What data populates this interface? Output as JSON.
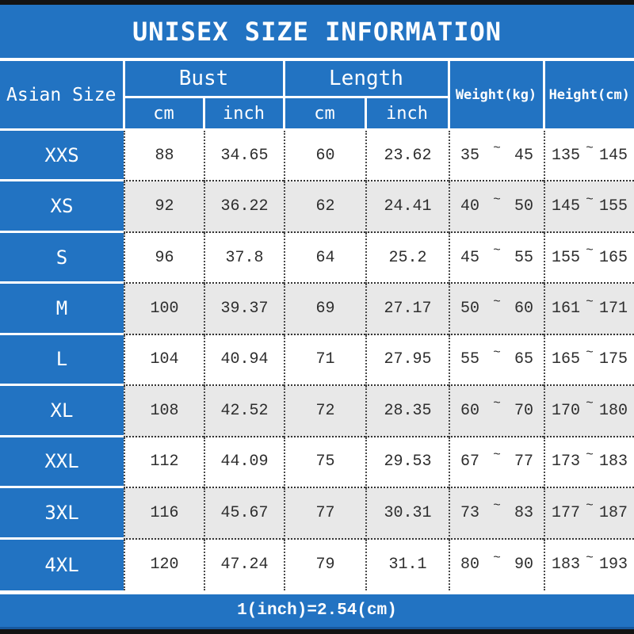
{
  "title": "UNISEX SIZE INFORMATION",
  "footer_note": "1(inch)=2.54(cm)",
  "colors": {
    "blue": "#2273c2",
    "row_alt": "#e8e8e8",
    "row_plain": "#ffffff",
    "header_text": "#ffffff",
    "data_text": "#2e2e2e",
    "frame_black": "#131313",
    "footer_rule_blue": "#17599f"
  },
  "chart_data": {
    "type": "table",
    "title": "UNISEX SIZE INFORMATION",
    "header": {
      "corner": "Asian Size",
      "groups": [
        {
          "label": "Bust",
          "subs": [
            "cm",
            "inch"
          ]
        },
        {
          "label": "Length",
          "subs": [
            "cm",
            "inch"
          ]
        }
      ],
      "spans": [
        "Weight(kg)",
        "Height(cm)"
      ]
    },
    "range_separator": "~",
    "columns": [
      "Asian Size",
      "Bust cm",
      "Bust inch",
      "Length cm",
      "Length inch",
      "Weight(kg)",
      "Height(cm)"
    ],
    "rows": [
      {
        "size": "XXS",
        "bust_cm": "88",
        "bust_inch": "34.65",
        "length_cm": "60",
        "length_inch": "23.62",
        "weight": [
          "35",
          "45"
        ],
        "height": [
          "135",
          "145"
        ]
      },
      {
        "size": "XS",
        "bust_cm": "92",
        "bust_inch": "36.22",
        "length_cm": "62",
        "length_inch": "24.41",
        "weight": [
          "40",
          "50"
        ],
        "height": [
          "145",
          "155"
        ]
      },
      {
        "size": "S",
        "bust_cm": "96",
        "bust_inch": "37.8",
        "length_cm": "64",
        "length_inch": "25.2",
        "weight": [
          "45",
          "55"
        ],
        "height": [
          "155",
          "165"
        ]
      },
      {
        "size": "M",
        "bust_cm": "100",
        "bust_inch": "39.37",
        "length_cm": "69",
        "length_inch": "27.17",
        "weight": [
          "50",
          "60"
        ],
        "height": [
          "161",
          "171"
        ]
      },
      {
        "size": "L",
        "bust_cm": "104",
        "bust_inch": "40.94",
        "length_cm": "71",
        "length_inch": "27.95",
        "weight": [
          "55",
          "65"
        ],
        "height": [
          "165",
          "175"
        ]
      },
      {
        "size": "XL",
        "bust_cm": "108",
        "bust_inch": "42.52",
        "length_cm": "72",
        "length_inch": "28.35",
        "weight": [
          "60",
          "70"
        ],
        "height": [
          "170",
          "180"
        ]
      },
      {
        "size": "XXL",
        "bust_cm": "112",
        "bust_inch": "44.09",
        "length_cm": "75",
        "length_inch": "29.53",
        "weight": [
          "67",
          "77"
        ],
        "height": [
          "173",
          "183"
        ]
      },
      {
        "size": "3XL",
        "bust_cm": "116",
        "bust_inch": "45.67",
        "length_cm": "77",
        "length_inch": "30.31",
        "weight": [
          "73",
          "83"
        ],
        "height": [
          "177",
          "187"
        ]
      },
      {
        "size": "4XL",
        "bust_cm": "120",
        "bust_inch": "47.24",
        "length_cm": "79",
        "length_inch": "31.1",
        "weight": [
          "80",
          "90"
        ],
        "height": [
          "183",
          "193"
        ]
      }
    ]
  }
}
